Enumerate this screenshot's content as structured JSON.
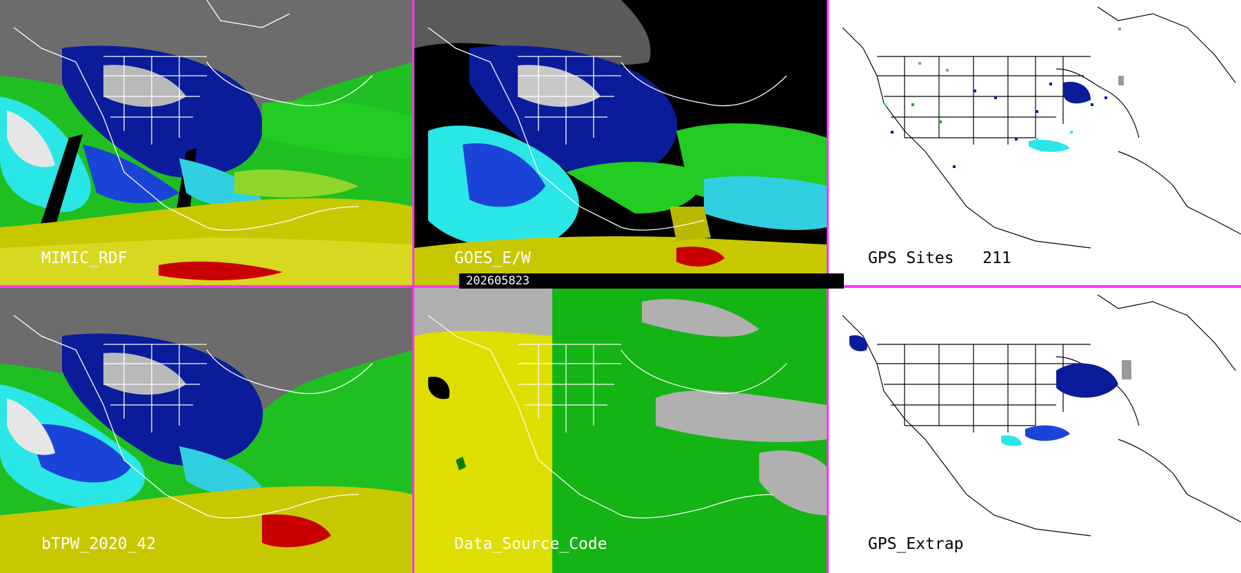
{
  "timestamp": "202605823",
  "panels": {
    "p1": {
      "label": "MIMIC_RDF"
    },
    "p2": {
      "label": "GOES_E/W"
    },
    "p3": {
      "label": "GPS Sites   211"
    },
    "p4": {
      "label": "bTPW_2020_42"
    },
    "p5": {
      "label": "Data_Source_Code"
    },
    "p6": {
      "label": "GPS_Extrap"
    }
  },
  "colors": {
    "divider": "#ff33ff",
    "dry_dark_blue": "#000a8a",
    "blue": "#0a2fd0",
    "cyan": "#2ae6e6",
    "green": "#22cc22",
    "yellow": "#d8d800",
    "red": "#c80000",
    "gray_cloud": "#b9b9b9",
    "source_yellow": "#dede00",
    "source_green": "#14b414",
    "source_gray": "#b0b0b0"
  }
}
